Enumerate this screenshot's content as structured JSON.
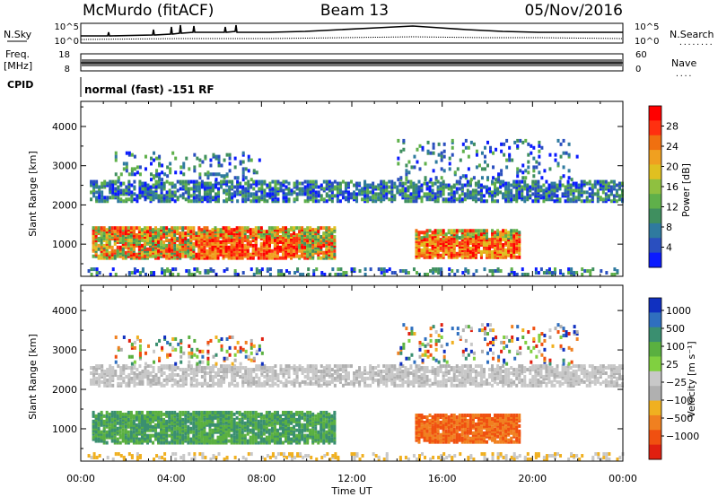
{
  "header": {
    "station": "McMurdo (fitACF)",
    "beam": "Beam 13",
    "date": "05/Nov/2016"
  },
  "params": {
    "nsky_label": "N.Sky",
    "nsearch_label": "N.Search",
    "nsearch_marker": "........",
    "noise_ticks": [
      "10^5",
      "10^0"
    ],
    "freq_label_1": "Freq.",
    "freq_label_2": "[MHz]",
    "freq_ticks": [
      "18",
      "8"
    ],
    "nave_label": "Nave",
    "nave_marker": "....",
    "nave_ticks": [
      "60",
      "0"
    ],
    "cpid_label": "CPID",
    "cpid_value": "normal (fast) -151 RF"
  },
  "chart_data": [
    {
      "type": "heatmap",
      "name": "power-panel",
      "ylabel": "Slant Range [km]",
      "yticks": [
        1000,
        2000,
        3000,
        4000
      ],
      "ylim": [
        180,
        4640
      ],
      "xlim_hours": [
        0,
        24
      ],
      "colorbar": {
        "label": "Power [dB]",
        "ticks": [
          "4",
          "8",
          "12",
          "16",
          "20",
          "24",
          "28"
        ],
        "colors": [
          "#0b1bff",
          "#2a4fbf",
          "#2f7a9f",
          "#3f8f5f",
          "#5fb04a",
          "#8fc040",
          "#e0c020",
          "#f0a020",
          "#f07010",
          "#ff3010",
          "#ff0000"
        ]
      }
    },
    {
      "type": "heatmap",
      "name": "velocity-panel",
      "ylabel": "Slant Range [km]",
      "yticks": [
        1000,
        2000,
        3000,
        4000
      ],
      "ylim": [
        180,
        4640
      ],
      "xlim_hours": [
        0,
        24
      ],
      "xticks": [
        "00:00",
        "04:00",
        "08:00",
        "12:00",
        "16:00",
        "20:00",
        "00:00"
      ],
      "xlabel": "Time UT",
      "colorbar": {
        "label": "Velocity [m s⁻¹]",
        "ticks": [
          "1000",
          "500",
          "100",
          "25",
          "−25",
          "−100",
          "−500",
          "−1000"
        ],
        "colors": [
          "#1030c0",
          "#2f6fbf",
          "#3a8f70",
          "#5ab040",
          "#80d040",
          "#c8c8c8",
          "#b0b0b0",
          "#f0b020",
          "#f08020",
          "#f05010",
          "#e02010"
        ]
      }
    }
  ]
}
